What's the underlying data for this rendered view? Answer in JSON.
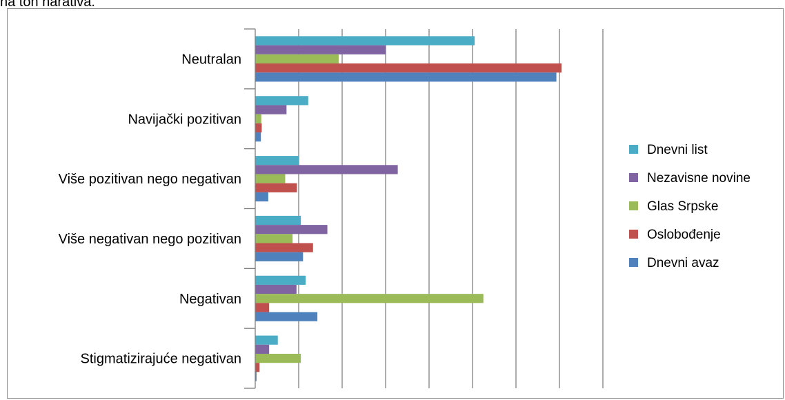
{
  "page": {
    "caption": "na ton narativa."
  },
  "chart_data": {
    "type": "bar",
    "orientation": "horizontal",
    "title": "",
    "xlabel": "",
    "ylabel": "",
    "xlim": [
      0,
      80
    ],
    "x_gridline_step": 10,
    "grid": true,
    "legend_position": "right",
    "categories": [
      "Neutralan",
      "Navijački pozitivan",
      "Više pozitivan nego negativan",
      "Više negativan nego pozitivan",
      "Negativan",
      "Stigmatizirajuće negativan"
    ],
    "series": [
      {
        "name": "Dnevni list",
        "color": "#4BACC6",
        "values": [
          50.5,
          12.2,
          10.0,
          10.5,
          11.6,
          5.2
        ]
      },
      {
        "name": "Nezavisne novine",
        "color": "#8064A2",
        "values": [
          30.0,
          7.2,
          32.8,
          16.6,
          9.5,
          3.2
        ]
      },
      {
        "name": "Glas Srpske",
        "color": "#9BBB59",
        "values": [
          19.2,
          1.4,
          6.9,
          8.6,
          52.5,
          10.5
        ]
      },
      {
        "name": "Oslobođenje",
        "color": "#C0504D",
        "values": [
          70.5,
          1.5,
          9.6,
          13.3,
          3.2,
          1.0
        ]
      },
      {
        "name": "Dnevni avaz",
        "color": "#4F81BD",
        "values": [
          69.3,
          1.3,
          3.0,
          11.0,
          14.3,
          0.3
        ]
      }
    ]
  }
}
